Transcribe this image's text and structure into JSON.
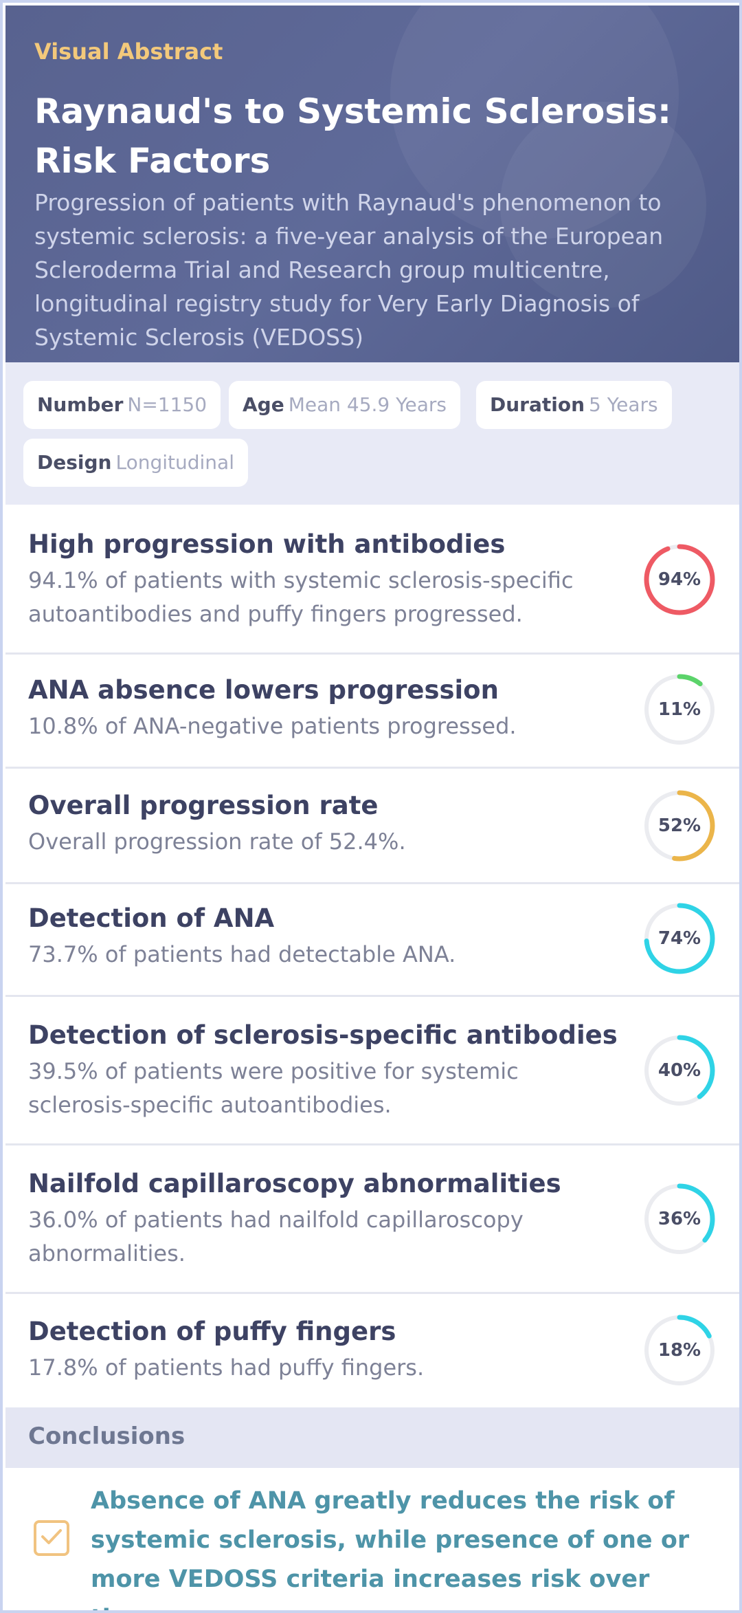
{
  "header": {
    "kicker": "Visual Abstract",
    "title": "Raynaud's to Systemic Sclerosis: Risk Factors",
    "subtitle": "Progression of patients with Raynaud's phenomenon to systemic sclerosis: a five-year analysis of the European Scleroderma Trial and Research group multicentre, longitudinal registry study for Very Early Diagnosis of Systemic Sclerosis (VEDOSS)"
  },
  "meta": [
    {
      "key": "Number",
      "value": "N=1150"
    },
    {
      "key": "Age",
      "value": "Mean 45.9 Years"
    },
    {
      "key": "Duration",
      "value": "5 Years"
    },
    {
      "key": "Design",
      "value": "Longitudinal"
    }
  ],
  "findings": [
    {
      "title": "High progression with antibodies",
      "desc": "94.1% of patients with systemic sclerosis-specific autoantibodies and puffy fingers progressed.",
      "pct_label": "94%",
      "value": 94.1,
      "color": "#ee5a64",
      "color2": "#f48a8f"
    },
    {
      "title": "ANA absence lowers progression",
      "desc": "10.8% of ANA-negative patients progressed.",
      "pct_label": "11%",
      "value": 10.8,
      "color": "#5bd36a",
      "color2": "#7fe08a"
    },
    {
      "title": "Overall progression rate",
      "desc": "Overall progression rate of 52.4%.",
      "pct_label": "52%",
      "value": 52.4,
      "color": "#ebb54a",
      "color2": "#f2c97a"
    },
    {
      "title": "Detection of ANA",
      "desc": "73.7% of patients had detectable ANA.",
      "pct_label": "74%",
      "value": 73.7,
      "color": "#2fd3e6",
      "color2": "#5ec3f0"
    },
    {
      "title": "Detection of sclerosis-specific antibodies",
      "desc": "39.5% of patients were positive for systemic sclerosis-specific autoantibodies.",
      "pct_label": "40%",
      "value": 39.5,
      "color": "#2fd3e6",
      "color2": "#5ec3f0"
    },
    {
      "title": "Nailfold capillaroscopy abnormalities",
      "desc": "36.0% of patients had nailfold capillaroscopy abnormalities.",
      "pct_label": "36%",
      "value": 36.0,
      "color": "#2fd3e6",
      "color2": "#5ec3f0"
    },
    {
      "title": "Detection of puffy fingers",
      "desc": "17.8% of patients had puffy fingers.",
      "pct_label": "18%",
      "value": 17.8,
      "color": "#2fd3e6",
      "color2": "#5ec3f0"
    }
  ],
  "conclusions": {
    "heading": "Conclusions",
    "icon": "checkbox-icon",
    "text": "Absence of ANA greatly reduces the risk of systemic sclerosis, while presence of one or more VEDOSS criteria increases risk over time."
  }
}
